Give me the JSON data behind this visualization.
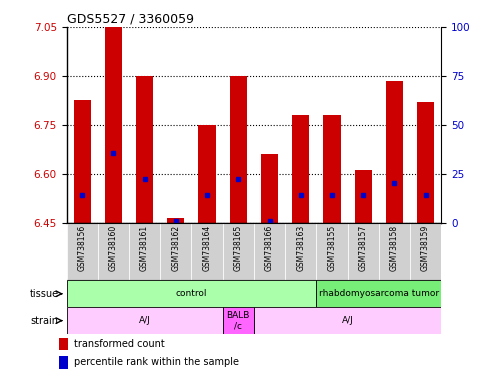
{
  "title": "GDS5527 / 3360059",
  "samples": [
    "GSM738156",
    "GSM738160",
    "GSM738161",
    "GSM738162",
    "GSM738164",
    "GSM738165",
    "GSM738166",
    "GSM738163",
    "GSM738155",
    "GSM738157",
    "GSM738158",
    "GSM738159"
  ],
  "red_values": [
    6.825,
    7.05,
    6.9,
    6.465,
    6.75,
    6.9,
    6.66,
    6.78,
    6.78,
    6.61,
    6.885,
    6.82
  ],
  "blue_values": [
    6.535,
    6.665,
    6.585,
    6.455,
    6.535,
    6.585,
    6.455,
    6.535,
    6.535,
    6.535,
    6.572,
    6.535
  ],
  "ymin": 6.45,
  "ymax": 7.05,
  "y_left_ticks": [
    6.45,
    6.6,
    6.75,
    6.9,
    7.05
  ],
  "y_right_ticks": [
    0,
    25,
    50,
    75,
    100
  ],
  "tissue_groups": [
    {
      "label": "control",
      "start": 0,
      "end": 8,
      "color": "#aaffaa"
    },
    {
      "label": "rhabdomyosarcoma tumor",
      "start": 8,
      "end": 12,
      "color": "#77ee77"
    }
  ],
  "strain_groups": [
    {
      "label": "A/J",
      "start": 0,
      "end": 5,
      "color": "#ffccff"
    },
    {
      "label": "BALB\n/c",
      "start": 5,
      "end": 6,
      "color": "#ff66ff"
    },
    {
      "label": "A/J",
      "start": 6,
      "end": 12,
      "color": "#ffccff"
    }
  ],
  "bar_color": "#cc0000",
  "blue_color": "#0000cc",
  "tick_color_left": "#cc0000",
  "tick_color_right": "#0000cc",
  "sample_bg_color": "#d0d0d0",
  "grid_linestyle": "dotted"
}
